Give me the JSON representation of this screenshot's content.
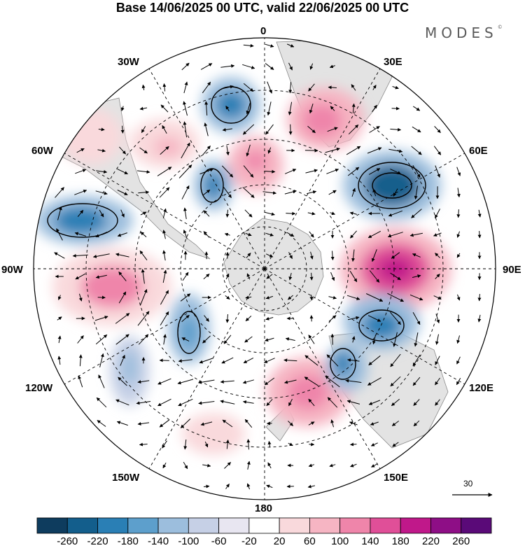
{
  "header": {
    "title": "Base 14/06/2025 00 UTC, valid 22/06/2025 00 UTC",
    "brand": "MODES",
    "brand_mark": "©"
  },
  "map": {
    "projection": "south polar stereographic",
    "longitude_labels": {
      "lon_0": "0",
      "lon_30e": "30E",
      "lon_60e": "60E",
      "lon_90e": "90E",
      "lon_120e": "120E",
      "lon_150e": "150E",
      "lon_180": "180",
      "lon_150w": "150W",
      "lon_120w": "120W",
      "lon_90w": "90W",
      "lon_60w": "60W",
      "lon_30w": "30W"
    },
    "vector_scale_label": "30",
    "land_color": "#e6e6e6",
    "grid_style": "dashed"
  },
  "colorbar": {
    "labels": [
      "-260",
      "-220",
      "-180",
      "-140",
      "-100",
      "-60",
      "-20",
      "20",
      "60",
      "100",
      "140",
      "180",
      "220",
      "260"
    ],
    "colors": [
      "#0e3c5e",
      "#135e8c",
      "#2a7fb5",
      "#5d9fcc",
      "#9cbedd",
      "#c6d0e6",
      "#e8e6f1",
      "#ffffff",
      "#f9d9dc",
      "#f6b5c3",
      "#ef85aa",
      "#e04f98",
      "#c0188a",
      "#8e0e86",
      "#5a0a78"
    ]
  }
}
